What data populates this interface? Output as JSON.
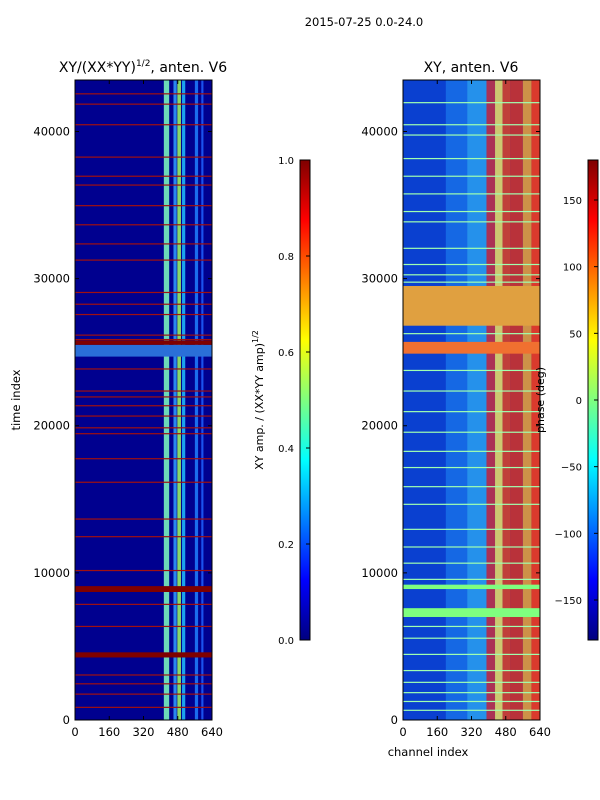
{
  "figure": {
    "suptitle": "2015-07-25 0.0-24.0",
    "colors": {
      "jet": [
        "#00007f",
        "#0000ff",
        "#007fff",
        "#00ffff",
        "#7fff7f",
        "#ffff00",
        "#ff7f00",
        "#ff0000",
        "#7f0000"
      ]
    }
  },
  "chart_data": [
    {
      "id": "amplitude-panel",
      "type": "heatmap",
      "title": "XY/(XX*YY)",
      "title_superscript": "1/2",
      "title_suffix": ", anten. V6",
      "xlabel": "",
      "ylabel": "time index",
      "xlim": [
        0,
        640
      ],
      "ylim": [
        0,
        43500
      ],
      "xticks": [
        0,
        160,
        320,
        480,
        640
      ],
      "yticks": [
        0,
        10000,
        20000,
        30000,
        40000
      ],
      "background_color": "#00008f",
      "colorbar": {
        "label": "XY amp. / (XX*YY amp)",
        "label_superscript": "1/2",
        "range": [
          0.0,
          1.0
        ],
        "ticks": [
          "0.0",
          "0.2",
          "0.4",
          "0.6",
          "0.8",
          "1.0"
        ]
      },
      "vertical_bands": [
        {
          "x0": 415,
          "x1": 440,
          "color": "#7fffbf"
        },
        {
          "x0": 460,
          "x1": 475,
          "color": "#30a0ff"
        },
        {
          "x0": 478,
          "x1": 495,
          "color": "#9fff60"
        },
        {
          "x0": 500,
          "x1": 515,
          "color": "#20c0ff"
        },
        {
          "x0": 560,
          "x1": 575,
          "color": "#2080ff"
        },
        {
          "x0": 590,
          "x1": 600,
          "color": "#2060ff"
        }
      ],
      "horizontal_bands": [
        {
          "y0": 8700,
          "y1": 9100,
          "color": "#7f0000"
        },
        {
          "y0": 4250,
          "y1": 4600,
          "color": "#7f0000"
        },
        {
          "y0": 24700,
          "y1": 25500,
          "color": "#2a6fd8"
        },
        {
          "y0": 25500,
          "y1": 25800,
          "color": "#7f0000"
        }
      ],
      "lines": [
        42600,
        41900,
        40500,
        38300,
        37000,
        36400,
        35000,
        33700,
        32400,
        31300,
        29100,
        28300,
        27600,
        26200,
        25900,
        23900,
        22400,
        22000,
        21400,
        20700,
        19900,
        19500,
        17800,
        16200,
        13700,
        12500,
        10200,
        7900,
        6400,
        3100,
        2500,
        1800,
        900
      ],
      "line_color": "#a01010"
    },
    {
      "id": "phase-panel",
      "type": "heatmap",
      "title": "XY, anten. V6",
      "xlabel": "channel index",
      "ylabel": "",
      "xlim": [
        0,
        640
      ],
      "ylim": [
        0,
        43500
      ],
      "xticks": [
        0,
        160,
        320,
        480,
        640
      ],
      "yticks": [
        0,
        10000,
        20000,
        30000,
        40000
      ],
      "background_color": "#0a40d0",
      "colorbar": {
        "label": "phase (deg)",
        "range": [
          -180,
          180
        ],
        "ticks": [
          "−150",
          "−100",
          "−50",
          "0",
          "50",
          "100",
          "150"
        ]
      },
      "vertical_bands": [
        {
          "x0": 200,
          "x1": 300,
          "color": "#1870e8"
        },
        {
          "x0": 300,
          "x1": 390,
          "color": "#2aa0f0"
        },
        {
          "x0": 390,
          "x1": 430,
          "color": "#c83040"
        },
        {
          "x0": 430,
          "x1": 465,
          "color": "#f0e060"
        },
        {
          "x0": 465,
          "x1": 500,
          "color": "#e04020"
        },
        {
          "x0": 500,
          "x1": 560,
          "color": "#d83020"
        },
        {
          "x0": 560,
          "x1": 600,
          "color": "#f0a030"
        },
        {
          "x0": 600,
          "x1": 640,
          "color": "#ff3a10"
        }
      ],
      "horizontal_bands": [
        {
          "y0": 26800,
          "y1": 29500,
          "color": "#e0a040"
        },
        {
          "y0": 24900,
          "y1": 25700,
          "color": "#f07030"
        },
        {
          "y0": 7000,
          "y1": 7600,
          "color": "#7fff7f"
        },
        {
          "y0": 8900,
          "y1": 9200,
          "color": "#7fff7f"
        }
      ],
      "lines": [
        42000,
        40500,
        39800,
        38200,
        37000,
        35800,
        34600,
        33900,
        32100,
        31000,
        30300,
        29800,
        26300,
        23800,
        22400,
        21000,
        19600,
        18300,
        17200,
        15900,
        14700,
        13000,
        11800,
        10700,
        9600,
        6400,
        5600,
        4500,
        3400,
        2600,
        1900,
        1300,
        700
      ],
      "line_color": "#a0ffb0"
    }
  ]
}
